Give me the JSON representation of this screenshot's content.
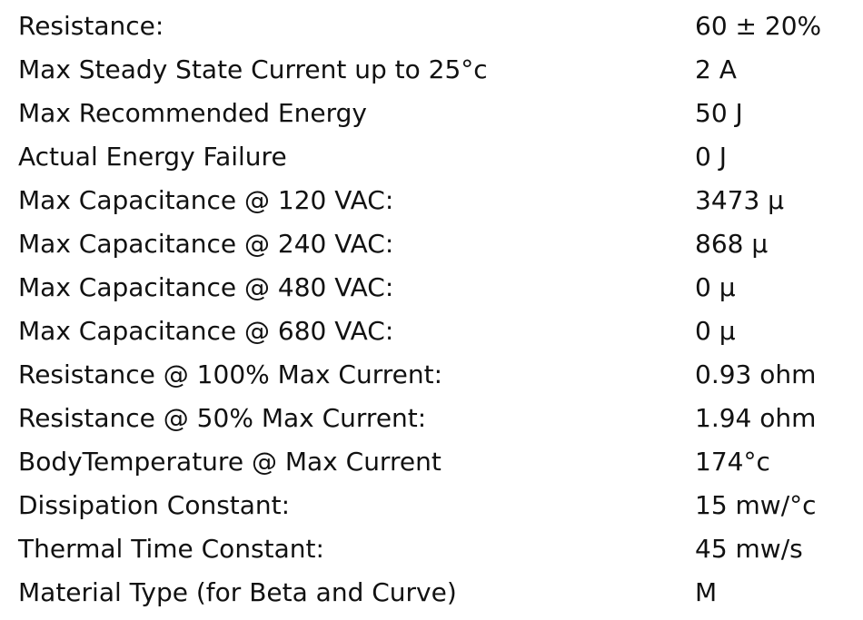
{
  "rows": [
    [
      "Resistance:",
      "60 ± 20%"
    ],
    [
      "Max Steady State Current up to 25°c",
      "2 A"
    ],
    [
      "Max Recommended Energy",
      "50 J"
    ],
    [
      "Actual Energy Failure",
      "0 J"
    ],
    [
      "Max Capacitance @ 120 VAC:",
      "3473 μ"
    ],
    [
      "Max Capacitance @ 240 VAC:",
      "868 μ"
    ],
    [
      "Max Capacitance @ 480 VAC:",
      "0 μ"
    ],
    [
      "Max Capacitance @ 680 VAC:",
      "0 μ"
    ],
    [
      "Resistance @ 100% Max Current:",
      "0.93 ohm"
    ],
    [
      "Resistance @ 50% Max Current:",
      "1.94 ohm"
    ],
    [
      "BodyTemperature @ Max Current",
      "174°c"
    ],
    [
      "Dissipation Constant:",
      "15 mw/°c"
    ],
    [
      "Thermal Time Constant:",
      "45 mw/s"
    ],
    [
      "Material Type (for Beta and Curve)",
      "M"
    ]
  ]
}
